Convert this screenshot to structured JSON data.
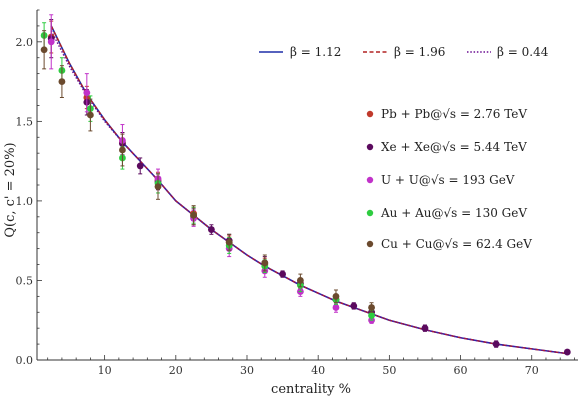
{
  "chart_data": {
    "type": "scatter",
    "xlabel": "centrality  %",
    "ylabel": "Q(c, c' = 20%)",
    "xlim": [
      0.5,
      76.5
    ],
    "ylim": [
      0,
      2.2
    ],
    "x_ticks": [
      10,
      20,
      30,
      40,
      50,
      60,
      70
    ],
    "y_ticks": [
      0.0,
      0.5,
      1.0,
      1.5,
      2.0
    ],
    "y_tick_labels": [
      "0.0",
      "0.5",
      "1.0",
      "1.5",
      "2.0"
    ],
    "grid": false,
    "line_legend_position": "top-right",
    "point_legend_position": "right",
    "lines": [
      {
        "name": "β = 1.12",
        "color": "#1f2fa8",
        "style": "solid",
        "x": [
          2.5,
          5,
          7.5,
          10,
          12.5,
          15,
          17.5,
          20,
          22.5,
          25,
          27.5,
          30,
          32.5,
          35,
          37.5,
          40,
          42.5,
          45,
          47.5,
          50,
          55,
          60,
          65,
          70,
          75
        ],
        "y": [
          2.1,
          1.87,
          1.67,
          1.51,
          1.37,
          1.25,
          1.13,
          1.0,
          0.91,
          0.82,
          0.74,
          0.66,
          0.59,
          0.53,
          0.47,
          0.42,
          0.37,
          0.33,
          0.29,
          0.25,
          0.19,
          0.14,
          0.1,
          0.07,
          0.04
        ]
      },
      {
        "name": "β = 1.96",
        "color": "#b22222",
        "style": "dashed",
        "x": [
          2.5,
          5,
          7.5,
          10,
          12.5,
          15,
          17.5,
          20,
          22.5,
          25,
          27.5,
          30,
          32.5,
          35,
          37.5,
          40,
          42.5,
          45,
          47.5,
          50,
          55,
          60,
          65,
          70,
          75
        ],
        "y": [
          2.1,
          1.87,
          1.67,
          1.51,
          1.37,
          1.25,
          1.13,
          1.0,
          0.91,
          0.82,
          0.74,
          0.66,
          0.59,
          0.53,
          0.47,
          0.42,
          0.37,
          0.33,
          0.29,
          0.25,
          0.19,
          0.14,
          0.1,
          0.07,
          0.04
        ]
      },
      {
        "name": "β = 0.44",
        "color": "#6a0d91",
        "style": "dotted",
        "x": [
          2.5,
          5,
          7.5,
          10,
          12.5,
          15,
          17.5,
          20,
          22.5,
          25,
          27.5,
          30,
          32.5,
          35,
          37.5,
          40,
          42.5,
          45,
          47.5,
          50,
          55,
          60,
          65,
          70,
          75
        ],
        "y": [
          2.07,
          1.85,
          1.66,
          1.5,
          1.37,
          1.25,
          1.13,
          1.0,
          0.91,
          0.82,
          0.74,
          0.66,
          0.59,
          0.53,
          0.47,
          0.42,
          0.37,
          0.33,
          0.29,
          0.25,
          0.19,
          0.14,
          0.1,
          0.07,
          0.04
        ]
      }
    ],
    "series": [
      {
        "name": "Pb + Pb@√s = 2.76 TeV",
        "color": "#c0392b",
        "points": [
          {
            "x": 2.5,
            "y": 2.03,
            "err": 0.1
          },
          {
            "x": 7.5,
            "y": 1.65,
            "err": 0.07
          },
          {
            "x": 12.5,
            "y": 1.37,
            "err": 0.06
          },
          {
            "x": 17.5,
            "y": 1.13,
            "err": 0.05
          },
          {
            "x": 22.5,
            "y": 0.92,
            "err": 0.04
          },
          {
            "x": 27.5,
            "y": 0.74,
            "err": 0.04
          },
          {
            "x": 32.5,
            "y": 0.6,
            "err": 0.04
          },
          {
            "x": 37.5,
            "y": 0.48,
            "err": 0.03
          },
          {
            "x": 42.5,
            "y": 0.38,
            "err": 0.03
          },
          {
            "x": 47.5,
            "y": 0.3,
            "err": 0.03
          }
        ]
      },
      {
        "name": "Xe + Xe@√s = 5.44 TeV",
        "color": "#5b0a5e",
        "points": [
          {
            "x": 2.5,
            "y": 2.02,
            "err": 0.12
          },
          {
            "x": 7.5,
            "y": 1.62,
            "err": 0.08
          },
          {
            "x": 12.5,
            "y": 1.36,
            "err": 0.07
          },
          {
            "x": 15,
            "y": 1.22,
            "err": 0.05
          },
          {
            "x": 17.5,
            "y": 1.12,
            "err": 0.05
          },
          {
            "x": 22.5,
            "y": 0.9,
            "err": 0.05
          },
          {
            "x": 25,
            "y": 0.82,
            "err": 0.03
          },
          {
            "x": 27.5,
            "y": 0.75,
            "err": 0.04
          },
          {
            "x": 32.5,
            "y": 0.61,
            "err": 0.04
          },
          {
            "x": 35,
            "y": 0.54,
            "err": 0.02
          },
          {
            "x": 37.5,
            "y": 0.48,
            "err": 0.03
          },
          {
            "x": 42.5,
            "y": 0.38,
            "err": 0.03
          },
          {
            "x": 45,
            "y": 0.34,
            "err": 0.02
          },
          {
            "x": 47.5,
            "y": 0.3,
            "err": 0.03
          },
          {
            "x": 55,
            "y": 0.2,
            "err": 0.02
          },
          {
            "x": 65,
            "y": 0.1,
            "err": 0.02
          },
          {
            "x": 75,
            "y": 0.05,
            "err": 0.01
          }
        ]
      },
      {
        "name": "U + U@√s = 193 GeV",
        "color": "#c132c9",
        "points": [
          {
            "x": 2.5,
            "y": 2.0,
            "err": 0.17
          },
          {
            "x": 7.5,
            "y": 1.68,
            "err": 0.12
          },
          {
            "x": 12.5,
            "y": 1.38,
            "err": 0.1
          },
          {
            "x": 17.5,
            "y": 1.14,
            "err": 0.06
          },
          {
            "x": 22.5,
            "y": 0.89,
            "err": 0.05
          },
          {
            "x": 27.5,
            "y": 0.7,
            "err": 0.05
          },
          {
            "x": 32.5,
            "y": 0.56,
            "err": 0.04
          },
          {
            "x": 37.5,
            "y": 0.43,
            "err": 0.03
          },
          {
            "x": 42.5,
            "y": 0.33,
            "err": 0.03
          },
          {
            "x": 47.5,
            "y": 0.25,
            "err": 0.02
          }
        ]
      },
      {
        "name": "Au + Au@√s = 130 GeV",
        "color": "#2ecc40",
        "points": [
          {
            "x": 1.5,
            "y": 2.04,
            "err": 0.08
          },
          {
            "x": 4,
            "y": 1.82,
            "err": 0.08
          },
          {
            "x": 8,
            "y": 1.58,
            "err": 0.08
          },
          {
            "x": 12.5,
            "y": 1.27,
            "err": 0.07
          },
          {
            "x": 17.5,
            "y": 1.11,
            "err": 0.06
          },
          {
            "x": 22.5,
            "y": 0.91,
            "err": 0.05
          },
          {
            "x": 27.5,
            "y": 0.72,
            "err": 0.05
          },
          {
            "x": 32.5,
            "y": 0.59,
            "err": 0.04
          },
          {
            "x": 37.5,
            "y": 0.47,
            "err": 0.04
          },
          {
            "x": 42.5,
            "y": 0.38,
            "err": 0.03
          },
          {
            "x": 47.5,
            "y": 0.28,
            "err": 0.03
          }
        ]
      },
      {
        "name": "Cu + Cu@√s = 62.4 GeV",
        "color": "#6b4a2e",
        "points": [
          {
            "x": 1.5,
            "y": 1.95,
            "err": 0.12
          },
          {
            "x": 4,
            "y": 1.75,
            "err": 0.1
          },
          {
            "x": 8,
            "y": 1.54,
            "err": 0.1
          },
          {
            "x": 12.5,
            "y": 1.32,
            "err": 0.1
          },
          {
            "x": 17.5,
            "y": 1.09,
            "err": 0.08
          },
          {
            "x": 22.5,
            "y": 0.91,
            "err": 0.06
          },
          {
            "x": 27.5,
            "y": 0.74,
            "err": 0.05
          },
          {
            "x": 32.5,
            "y": 0.61,
            "err": 0.05
          },
          {
            "x": 37.5,
            "y": 0.5,
            "err": 0.04
          },
          {
            "x": 42.5,
            "y": 0.4,
            "err": 0.04
          },
          {
            "x": 47.5,
            "y": 0.33,
            "err": 0.03
          }
        ]
      }
    ]
  }
}
